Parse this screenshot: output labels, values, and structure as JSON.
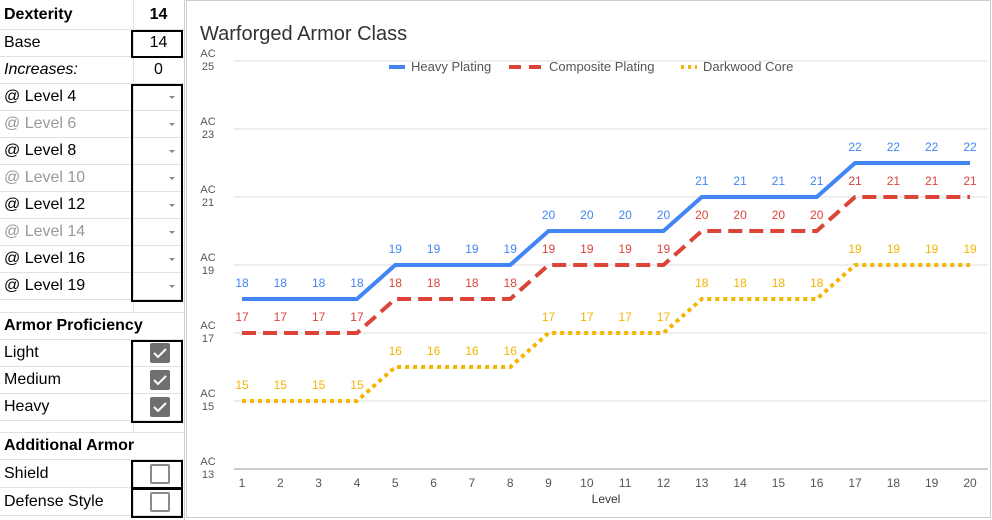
{
  "panel": {
    "dexterity": {
      "label": "Dexterity",
      "value": "14"
    },
    "base": {
      "label": "Base",
      "value": "14"
    },
    "increases": {
      "label": "Increases:",
      "value": "0"
    },
    "levels": [
      {
        "label": "@ Level 4",
        "active": true
      },
      {
        "label": "@ Level 6",
        "active": false
      },
      {
        "label": "@ Level 8",
        "active": true
      },
      {
        "label": "@ Level 10",
        "active": false
      },
      {
        "label": "@ Level 12",
        "active": true
      },
      {
        "label": "@ Level 14",
        "active": false
      },
      {
        "label": "@ Level 16",
        "active": true
      },
      {
        "label": "@ Level 19",
        "active": true
      }
    ],
    "proficiency": {
      "title": "Armor Proficiency",
      "items": [
        {
          "label": "Light",
          "checked": true
        },
        {
          "label": "Medium",
          "checked": true
        },
        {
          "label": "Heavy",
          "checked": true
        }
      ]
    },
    "additional": {
      "title": "Additional Armor",
      "items": [
        {
          "label": "Shield",
          "checked": false
        },
        {
          "label": "Defense Style",
          "checked": false
        }
      ]
    }
  },
  "chart_data": {
    "type": "line",
    "title": "Warforged Armor Class",
    "xlabel": "Level",
    "ylabel": "",
    "x": [
      1,
      2,
      3,
      4,
      5,
      6,
      7,
      8,
      9,
      10,
      11,
      12,
      13,
      14,
      15,
      16,
      17,
      18,
      19,
      20
    ],
    "ylim": [
      13,
      25
    ],
    "yticks": [
      {
        "v": 13,
        "label": "AC 13"
      },
      {
        "v": 15,
        "label": "AC 15"
      },
      {
        "v": 17,
        "label": "AC 17"
      },
      {
        "v": 19,
        "label": "AC 19"
      },
      {
        "v": 21,
        "label": "AC 21"
      },
      {
        "v": 23,
        "label": "AC 23"
      },
      {
        "v": 25,
        "label": "AC 25"
      }
    ],
    "grid": true,
    "legend": "top",
    "series": [
      {
        "name": "Heavy Plating",
        "color": "#4285f4",
        "style": "solid",
        "values": [
          18,
          18,
          18,
          18,
          19,
          19,
          19,
          19,
          20,
          20,
          20,
          20,
          21,
          21,
          21,
          21,
          22,
          22,
          22,
          22
        ]
      },
      {
        "name": "Composite Plating",
        "color": "#db4437",
        "style": "dashed",
        "values": [
          17,
          17,
          17,
          17,
          18,
          18,
          18,
          18,
          19,
          19,
          19,
          19,
          20,
          20,
          20,
          20,
          21,
          21,
          21,
          21
        ]
      },
      {
        "name": "Darkwood Core",
        "color": "#f4b400",
        "style": "dotted",
        "values": [
          15,
          15,
          15,
          15,
          16,
          16,
          16,
          16,
          17,
          17,
          17,
          17,
          18,
          18,
          18,
          18,
          19,
          19,
          19,
          19
        ]
      }
    ]
  }
}
